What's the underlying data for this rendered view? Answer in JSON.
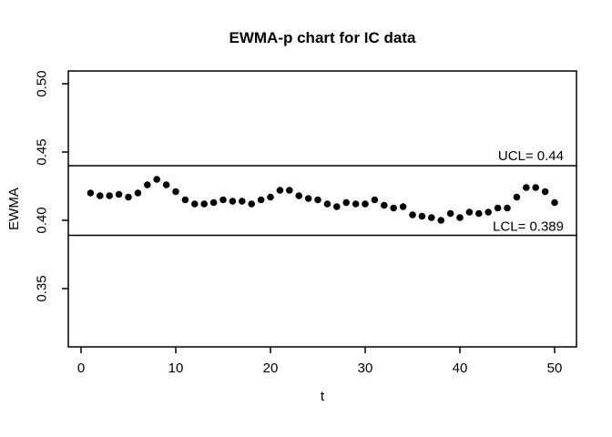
{
  "figure": {
    "background": "#ffffff",
    "foreground": "#000000"
  },
  "chart_data": {
    "type": "scatter",
    "title": "EWMA-p chart for IC data",
    "xlabel": "t",
    "ylabel": "EWMA",
    "x": [
      1,
      2,
      3,
      4,
      5,
      6,
      7,
      8,
      9,
      10,
      11,
      12,
      13,
      14,
      15,
      16,
      17,
      18,
      19,
      20,
      21,
      22,
      23,
      24,
      25,
      26,
      27,
      28,
      29,
      30,
      31,
      32,
      33,
      34,
      35,
      36,
      37,
      38,
      39,
      40,
      41,
      42,
      43,
      44,
      45,
      46,
      47,
      48,
      49,
      50
    ],
    "y": [
      0.42,
      0.418,
      0.418,
      0.419,
      0.417,
      0.42,
      0.426,
      0.43,
      0.426,
      0.421,
      0.415,
      0.412,
      0.412,
      0.413,
      0.415,
      0.414,
      0.414,
      0.412,
      0.415,
      0.417,
      0.422,
      0.422,
      0.418,
      0.416,
      0.415,
      0.412,
      0.41,
      0.413,
      0.412,
      0.412,
      0.415,
      0.411,
      0.409,
      0.41,
      0.404,
      0.403,
      0.402,
      0.4,
      0.405,
      0.402,
      0.406,
      0.405,
      0.406,
      0.409,
      0.409,
      0.417,
      0.424,
      0.424,
      0.421,
      0.413
    ],
    "xlim": [
      0,
      52
    ],
    "ylim": [
      0.33,
      0.51
    ],
    "x_ticks": [
      0,
      10,
      20,
      30,
      40,
      50
    ],
    "y_ticks": [
      0.35,
      0.4,
      0.45,
      0.5
    ],
    "y_tick_labels": [
      "0.35",
      "0.40",
      "0.45",
      "0.50"
    ],
    "control_limits": {
      "ucl": {
        "value": 0.44,
        "label": "UCL= 0.44"
      },
      "lcl": {
        "value": 0.389,
        "label": "LCL= 0.389"
      }
    },
    "point_color": "#000000",
    "line_color": "#000000",
    "grid": false,
    "legend": null
  }
}
